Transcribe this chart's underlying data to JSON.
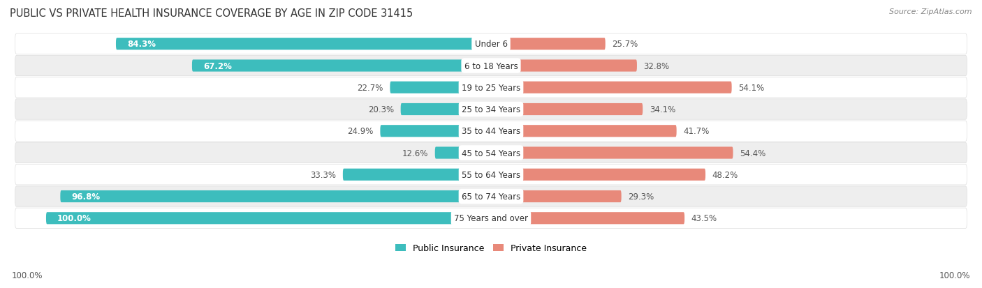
{
  "title": "PUBLIC VS PRIVATE HEALTH INSURANCE COVERAGE BY AGE IN ZIP CODE 31415",
  "source": "Source: ZipAtlas.com",
  "categories": [
    "Under 6",
    "6 to 18 Years",
    "19 to 25 Years",
    "25 to 34 Years",
    "35 to 44 Years",
    "45 to 54 Years",
    "55 to 64 Years",
    "65 to 74 Years",
    "75 Years and over"
  ],
  "public_values": [
    84.3,
    67.2,
    22.7,
    20.3,
    24.9,
    12.6,
    33.3,
    96.8,
    100.0
  ],
  "private_values": [
    25.7,
    32.8,
    54.1,
    34.1,
    41.7,
    54.4,
    48.2,
    29.3,
    43.5
  ],
  "public_color": "#3dbdbd",
  "private_color": "#e8897a",
  "public_color_light": "#b0dede",
  "private_color_light": "#f2bfb5",
  "row_bg": "#e8e8e8",
  "bar_height": 0.55,
  "max_value": 100.0,
  "title_fontsize": 10.5,
  "label_fontsize": 8.5,
  "legend_fontsize": 9,
  "source_fontsize": 8,
  "axis_label": "100.0%",
  "background_color": "#ffffff",
  "cat_label_fontsize": 8.5
}
